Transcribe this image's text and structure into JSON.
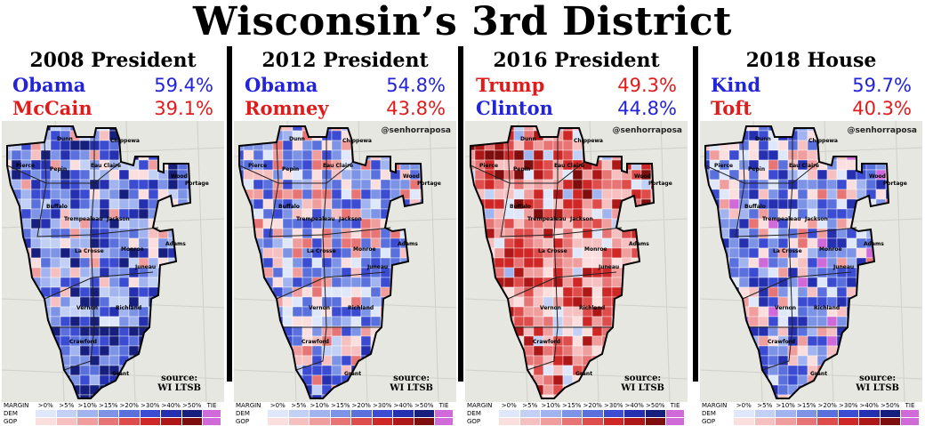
{
  "title": "Wisconsin’s 3rd District",
  "credit": "@senhorraposa",
  "source_line1": "source:",
  "source_line2": "WI LTSB",
  "legend": {
    "margin_label": "MARGIN",
    "dem_label": "DEM",
    "gop_label": "GOP",
    "bins": [
      ">0%",
      ">5%",
      ">10%",
      ">15%",
      ">20%",
      ">30%",
      ">40%",
      ">50%"
    ],
    "tie_label": "TIE",
    "dem_colors": [
      "#dfe7fb",
      "#c3d0f6",
      "#a2b4ef",
      "#7d93e6",
      "#5a70dc",
      "#3b4cd2",
      "#2530b0",
      "#161e7e"
    ],
    "gop_colors": [
      "#fbdede",
      "#f6c0c0",
      "#ef9d9d",
      "#e87575",
      "#df4c4c",
      "#cf2626",
      "#ad1717",
      "#7e0d0d"
    ],
    "tie_color": "#cf6ad8"
  },
  "county_labels": [
    "Dunn",
    "Chippewa",
    "Pierce",
    "Pepin",
    "Eau Claire",
    "Buffalo",
    "Trempealeau",
    "Jackson",
    "Wood",
    "Portage",
    "Adams",
    "Monroe",
    "La Crosse",
    "Juneau",
    "Vernon",
    "Richland",
    "Crawford",
    "Grant"
  ],
  "panels": [
    {
      "title": "2008 President",
      "candidates": [
        {
          "name": "Obama",
          "pct": "59.4%",
          "color": "#2323d8"
        },
        {
          "name": "McCain",
          "pct": "39.1%",
          "color": "#e01b1b"
        }
      ],
      "lean": "dem"
    },
    {
      "title": "2012 President",
      "candidates": [
        {
          "name": "Obama",
          "pct": "54.8%",
          "color": "#2323d8"
        },
        {
          "name": "Romney",
          "pct": "43.8%",
          "color": "#e01b1b"
        }
      ],
      "lean": "lightdem"
    },
    {
      "title": "2016 President",
      "candidates": [
        {
          "name": "Trump",
          "pct": "49.3%",
          "color": "#e01b1b"
        },
        {
          "name": "Clinton",
          "pct": "44.8%",
          "color": "#2323d8"
        }
      ],
      "lean": "gop"
    },
    {
      "title": "2018 House",
      "candidates": [
        {
          "name": "Kind",
          "pct": "59.7%",
          "color": "#2323d8"
        },
        {
          "name": "Toft",
          "pct": "40.3%",
          "color": "#e01b1b"
        }
      ],
      "lean": "mixdem"
    }
  ]
}
